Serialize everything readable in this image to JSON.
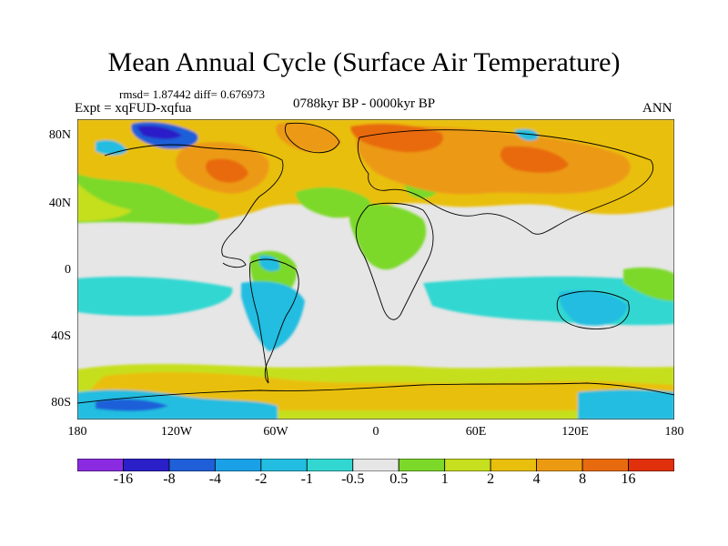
{
  "title": "Mean Annual Cycle (Surface Air Temperature)",
  "stats": "rmsd= 1.87442 diff= 0.676973",
  "experiment": "Expt = xqFUD-xqfua",
  "period": "0788kyr BP - 0000kyr BP",
  "season": "ANN",
  "lat_labels": [
    "80N",
    "40N",
    "0",
    "40S",
    "80S"
  ],
  "lon_labels": [
    "180",
    "120W",
    "60W",
    "0",
    "60E",
    "120E",
    "180"
  ],
  "colorbar": {
    "labels": [
      "-16",
      "-8",
      "-4",
      "-2",
      "-1",
      "-0.5",
      "0.5",
      "1",
      "2",
      "4",
      "8",
      "16"
    ],
    "colors": [
      "#8a2be2",
      "#2a1fc8",
      "#1f5fd8",
      "#1aa0e6",
      "#22bde0",
      "#33d7d1",
      "#e6e6e6",
      "#7cd92a",
      "#c6df1f",
      "#e9bf0d",
      "#ec9a12",
      "#e86a0e",
      "#e0300c"
    ]
  }
}
